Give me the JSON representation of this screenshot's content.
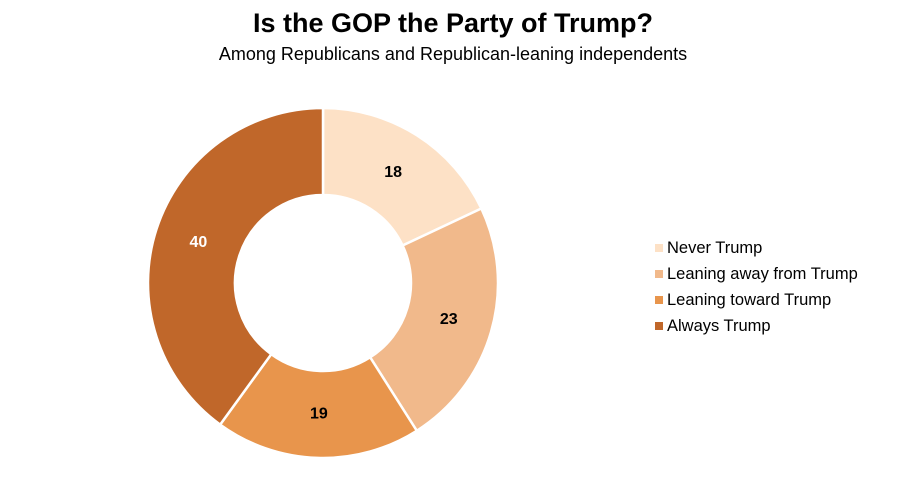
{
  "chart_data": {
    "type": "pie",
    "variant": "donut",
    "title": "Is the GOP the Party of Trump?",
    "subtitle": "Among Republicans and Republican-leaning independents",
    "categories": [
      "Never Trump",
      "Leaning away from Trump",
      "Leaning toward Trump",
      "Always Trump"
    ],
    "values": [
      18,
      23,
      19,
      40
    ],
    "colors": [
      "#fde1c6",
      "#f1b98b",
      "#e8954c",
      "#c0672a"
    ],
    "label_colors": [
      "#000000",
      "#000000",
      "#000000",
      "#ffffff"
    ],
    "legend_position": "right"
  }
}
